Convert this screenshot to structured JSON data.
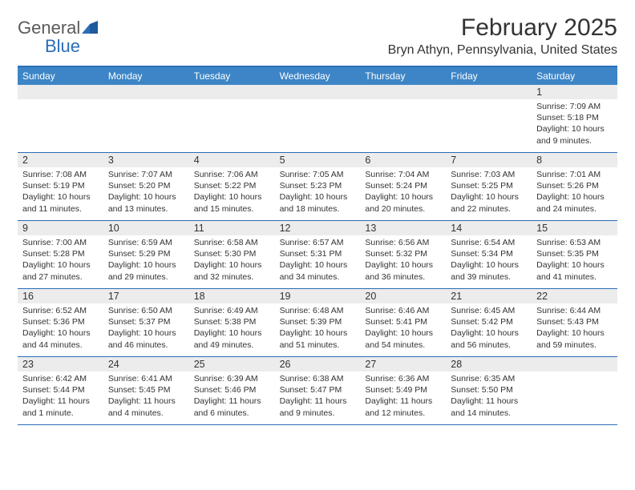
{
  "brand": {
    "word1": "General",
    "word2": "Blue"
  },
  "title": "February 2025",
  "location": "Bryn Athyn, Pennsylvania, United States",
  "colors": {
    "header_bg": "#3d85c6",
    "border": "#2a6db8",
    "day_number_bg": "#ececec",
    "text": "#333333",
    "header_text": "#ffffff"
  },
  "day_names": [
    "Sunday",
    "Monday",
    "Tuesday",
    "Wednesday",
    "Thursday",
    "Friday",
    "Saturday"
  ],
  "weeks": [
    [
      null,
      null,
      null,
      null,
      null,
      null,
      {
        "n": "1",
        "sunrise": "7:09 AM",
        "sunset": "5:18 PM",
        "daylight": "10 hours and 9 minutes."
      }
    ],
    [
      {
        "n": "2",
        "sunrise": "7:08 AM",
        "sunset": "5:19 PM",
        "daylight": "10 hours and 11 minutes."
      },
      {
        "n": "3",
        "sunrise": "7:07 AM",
        "sunset": "5:20 PM",
        "daylight": "10 hours and 13 minutes."
      },
      {
        "n": "4",
        "sunrise": "7:06 AM",
        "sunset": "5:22 PM",
        "daylight": "10 hours and 15 minutes."
      },
      {
        "n": "5",
        "sunrise": "7:05 AM",
        "sunset": "5:23 PM",
        "daylight": "10 hours and 18 minutes."
      },
      {
        "n": "6",
        "sunrise": "7:04 AM",
        "sunset": "5:24 PM",
        "daylight": "10 hours and 20 minutes."
      },
      {
        "n": "7",
        "sunrise": "7:03 AM",
        "sunset": "5:25 PM",
        "daylight": "10 hours and 22 minutes."
      },
      {
        "n": "8",
        "sunrise": "7:01 AM",
        "sunset": "5:26 PM",
        "daylight": "10 hours and 24 minutes."
      }
    ],
    [
      {
        "n": "9",
        "sunrise": "7:00 AM",
        "sunset": "5:28 PM",
        "daylight": "10 hours and 27 minutes."
      },
      {
        "n": "10",
        "sunrise": "6:59 AM",
        "sunset": "5:29 PM",
        "daylight": "10 hours and 29 minutes."
      },
      {
        "n": "11",
        "sunrise": "6:58 AM",
        "sunset": "5:30 PM",
        "daylight": "10 hours and 32 minutes."
      },
      {
        "n": "12",
        "sunrise": "6:57 AM",
        "sunset": "5:31 PM",
        "daylight": "10 hours and 34 minutes."
      },
      {
        "n": "13",
        "sunrise": "6:56 AM",
        "sunset": "5:32 PM",
        "daylight": "10 hours and 36 minutes."
      },
      {
        "n": "14",
        "sunrise": "6:54 AM",
        "sunset": "5:34 PM",
        "daylight": "10 hours and 39 minutes."
      },
      {
        "n": "15",
        "sunrise": "6:53 AM",
        "sunset": "5:35 PM",
        "daylight": "10 hours and 41 minutes."
      }
    ],
    [
      {
        "n": "16",
        "sunrise": "6:52 AM",
        "sunset": "5:36 PM",
        "daylight": "10 hours and 44 minutes."
      },
      {
        "n": "17",
        "sunrise": "6:50 AM",
        "sunset": "5:37 PM",
        "daylight": "10 hours and 46 minutes."
      },
      {
        "n": "18",
        "sunrise": "6:49 AM",
        "sunset": "5:38 PM",
        "daylight": "10 hours and 49 minutes."
      },
      {
        "n": "19",
        "sunrise": "6:48 AM",
        "sunset": "5:39 PM",
        "daylight": "10 hours and 51 minutes."
      },
      {
        "n": "20",
        "sunrise": "6:46 AM",
        "sunset": "5:41 PM",
        "daylight": "10 hours and 54 minutes."
      },
      {
        "n": "21",
        "sunrise": "6:45 AM",
        "sunset": "5:42 PM",
        "daylight": "10 hours and 56 minutes."
      },
      {
        "n": "22",
        "sunrise": "6:44 AM",
        "sunset": "5:43 PM",
        "daylight": "10 hours and 59 minutes."
      }
    ],
    [
      {
        "n": "23",
        "sunrise": "6:42 AM",
        "sunset": "5:44 PM",
        "daylight": "11 hours and 1 minute."
      },
      {
        "n": "24",
        "sunrise": "6:41 AM",
        "sunset": "5:45 PM",
        "daylight": "11 hours and 4 minutes."
      },
      {
        "n": "25",
        "sunrise": "6:39 AM",
        "sunset": "5:46 PM",
        "daylight": "11 hours and 6 minutes."
      },
      {
        "n": "26",
        "sunrise": "6:38 AM",
        "sunset": "5:47 PM",
        "daylight": "11 hours and 9 minutes."
      },
      {
        "n": "27",
        "sunrise": "6:36 AM",
        "sunset": "5:49 PM",
        "daylight": "11 hours and 12 minutes."
      },
      {
        "n": "28",
        "sunrise": "6:35 AM",
        "sunset": "5:50 PM",
        "daylight": "11 hours and 14 minutes."
      },
      null
    ]
  ],
  "labels": {
    "sunrise": "Sunrise:",
    "sunset": "Sunset:",
    "daylight": "Daylight:"
  }
}
